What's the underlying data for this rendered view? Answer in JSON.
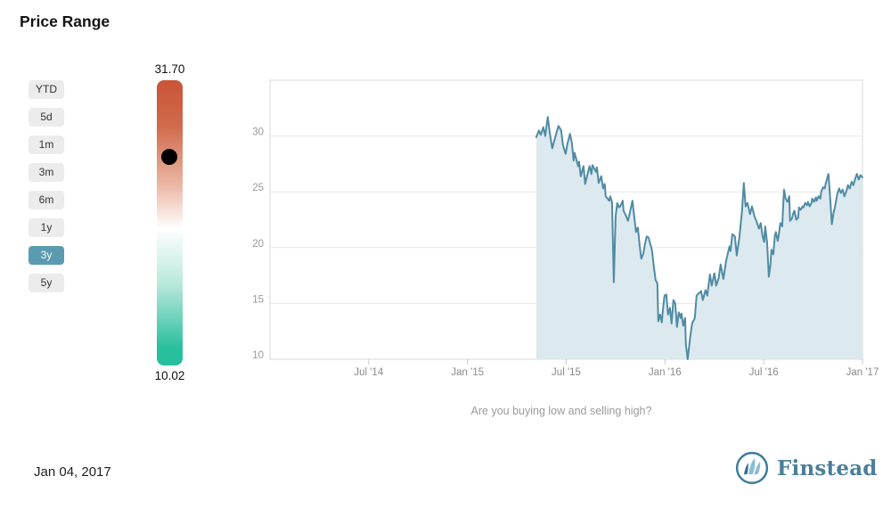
{
  "header": {
    "title": "Price Range"
  },
  "caption": "Are you buying low and selling high?",
  "footer": {
    "date": "Jan 04, 2017"
  },
  "range_selector": {
    "options": [
      "YTD",
      "5d",
      "1m",
      "3m",
      "6m",
      "1y",
      "3y",
      "5y"
    ],
    "selected": "3y",
    "selected_bg": "#5b9bb0",
    "selected_text": "#ffffff",
    "unselected_bg": "#ececec"
  },
  "price_range_bar": {
    "max_label": "31.70",
    "min_label": "10.02",
    "max_value": 31.7,
    "min_value": 10.02,
    "current_value": 25.9,
    "marker_color": "#000000",
    "gradient_stops": [
      "#c95536 0%",
      "#d06a4c 16%",
      "#ecbcab 38%",
      "#ffffff 52%",
      "#b7e7db 72%",
      "#28bf9e 94%"
    ]
  },
  "brand": {
    "name": "Finstead",
    "text_color": "#4b7e99",
    "ring_color": "#3e7d9d",
    "sail_dark": "#2e6f8e",
    "sail_light": "#8abdd3"
  },
  "chart_data": {
    "type": "area",
    "title": "",
    "xlabel": "",
    "ylabel": "",
    "grid": true,
    "legend": false,
    "line_color": "#4f8ba3",
    "fill_color": "#dce9ef",
    "plot_bg": "#ffffff",
    "border_color": "#d9d9d9",
    "grid_color": "#e7e7e7",
    "x_axis": {
      "unit": "months since Jan 2014",
      "range": [
        0,
        36
      ],
      "ticks": [
        {
          "m": 6,
          "label": "Jul '14"
        },
        {
          "m": 12,
          "label": "Jan '15"
        },
        {
          "m": 18,
          "label": "Jul '15"
        },
        {
          "m": 24,
          "label": "Jan '16"
        },
        {
          "m": 30,
          "label": "Jul '16"
        },
        {
          "m": 36,
          "label": "Jan '17"
        }
      ]
    },
    "y_axis": {
      "range": [
        10,
        35
      ],
      "ticks": [
        10,
        15,
        20,
        25,
        30
      ]
    },
    "series": [
      {
        "name": "Price",
        "points": [
          [
            16.18,
            29.9
          ],
          [
            16.34,
            30.5
          ],
          [
            16.45,
            30.1
          ],
          [
            16.61,
            30.8
          ],
          [
            16.72,
            30.0
          ],
          [
            16.88,
            31.7
          ],
          [
            17.0,
            30.3
          ],
          [
            17.15,
            28.9
          ],
          [
            17.37,
            30.1
          ],
          [
            17.53,
            30.9
          ],
          [
            17.69,
            30.5
          ],
          [
            17.8,
            29.2
          ],
          [
            17.96,
            28.4
          ],
          [
            18.07,
            29.3
          ],
          [
            18.18,
            29.9
          ],
          [
            18.23,
            30.2
          ],
          [
            18.34,
            29.4
          ],
          [
            18.45,
            27.8
          ],
          [
            18.51,
            28.5
          ],
          [
            18.72,
            27.3
          ],
          [
            18.78,
            27.7
          ],
          [
            18.88,
            26.4
          ],
          [
            19.05,
            27.3
          ],
          [
            19.15,
            25.7
          ],
          [
            19.26,
            26.4
          ],
          [
            19.42,
            27.3
          ],
          [
            19.53,
            26.6
          ],
          [
            19.59,
            27.4
          ],
          [
            19.8,
            26.8
          ],
          [
            19.86,
            27.2
          ],
          [
            19.97,
            25.8
          ],
          [
            20.13,
            26.4
          ],
          [
            20.24,
            25.3
          ],
          [
            20.34,
            25.7
          ],
          [
            20.4,
            24.6
          ],
          [
            20.62,
            24.2
          ],
          [
            20.67,
            24.6
          ],
          [
            20.78,
            24.1
          ],
          [
            20.89,
            16.9
          ],
          [
            21.0,
            22.8
          ],
          [
            21.1,
            24.0
          ],
          [
            21.21,
            23.6
          ],
          [
            21.32,
            23.8
          ],
          [
            21.43,
            24.2
          ],
          [
            21.48,
            23.3
          ],
          [
            21.59,
            23.0
          ],
          [
            21.75,
            22.4
          ],
          [
            21.86,
            23.1
          ],
          [
            22.02,
            24.2
          ],
          [
            22.13,
            22.8
          ],
          [
            22.24,
            21.4
          ],
          [
            22.35,
            21.8
          ],
          [
            22.46,
            20.2
          ],
          [
            22.56,
            19.0
          ],
          [
            22.67,
            19.4
          ],
          [
            22.78,
            20.3
          ],
          [
            22.89,
            21.0
          ],
          [
            23.0,
            20.9
          ],
          [
            23.11,
            20.3
          ],
          [
            23.21,
            19.8
          ],
          [
            23.32,
            18.3
          ],
          [
            23.43,
            17.1
          ],
          [
            23.54,
            16.8
          ],
          [
            23.59,
            13.4
          ],
          [
            23.7,
            14.0
          ],
          [
            23.81,
            13.3
          ],
          [
            23.86,
            14.2
          ],
          [
            23.97,
            15.7
          ],
          [
            24.08,
            15.8
          ],
          [
            24.19,
            14.0
          ],
          [
            24.3,
            14.6
          ],
          [
            24.4,
            13.2
          ],
          [
            24.51,
            15.3
          ],
          [
            24.62,
            15.0
          ],
          [
            24.73,
            12.9
          ],
          [
            24.84,
            14.2
          ],
          [
            24.95,
            13.7
          ],
          [
            25.0,
            14.1
          ],
          [
            25.11,
            13.0
          ],
          [
            25.22,
            13.7
          ],
          [
            25.27,
            11.3
          ],
          [
            25.38,
            10.0
          ],
          [
            25.54,
            12.1
          ],
          [
            25.65,
            13.2
          ],
          [
            25.81,
            13.7
          ],
          [
            25.92,
            15.7
          ],
          [
            26.19,
            16.1
          ],
          [
            26.3,
            15.3
          ],
          [
            26.46,
            16.2
          ],
          [
            26.57,
            15.7
          ],
          [
            26.73,
            17.6
          ],
          [
            26.84,
            16.6
          ],
          [
            27.0,
            17.7
          ],
          [
            27.11,
            16.6
          ],
          [
            27.27,
            17.3
          ],
          [
            27.38,
            18.5
          ],
          [
            27.55,
            17.2
          ],
          [
            27.71,
            18.8
          ],
          [
            27.92,
            20.1
          ],
          [
            27.98,
            19.7
          ],
          [
            28.09,
            21.2
          ],
          [
            28.25,
            21.0
          ],
          [
            28.36,
            19.3
          ],
          [
            28.52,
            20.9
          ],
          [
            28.68,
            23.3
          ],
          [
            28.79,
            25.8
          ],
          [
            28.9,
            23.7
          ],
          [
            29.01,
            24.0
          ],
          [
            29.17,
            23.0
          ],
          [
            29.28,
            23.7
          ],
          [
            29.44,
            22.8
          ],
          [
            29.55,
            22.4
          ],
          [
            29.71,
            21.7
          ],
          [
            29.82,
            22.2
          ],
          [
            29.93,
            21.0
          ],
          [
            30.03,
            20.5
          ],
          [
            30.09,
            21.9
          ],
          [
            30.2,
            20.5
          ],
          [
            30.31,
            17.4
          ],
          [
            30.41,
            18.5
          ],
          [
            30.47,
            19.8
          ],
          [
            30.58,
            19.4
          ],
          [
            30.68,
            21.1
          ],
          [
            30.74,
            21.4
          ],
          [
            30.85,
            20.6
          ],
          [
            30.9,
            21.0
          ],
          [
            31.01,
            22.2
          ],
          [
            31.12,
            21.9
          ],
          [
            31.23,
            25.2
          ],
          [
            31.33,
            24.4
          ],
          [
            31.44,
            24.1
          ],
          [
            31.55,
            24.6
          ],
          [
            31.6,
            22.4
          ],
          [
            31.71,
            22.6
          ],
          [
            31.82,
            23.2
          ],
          [
            31.87,
            23.3
          ],
          [
            31.98,
            22.5
          ],
          [
            32.09,
            22.7
          ],
          [
            32.14,
            23.6
          ],
          [
            32.25,
            23.4
          ],
          [
            32.36,
            23.7
          ],
          [
            32.41,
            23.6
          ],
          [
            32.52,
            24.0
          ],
          [
            32.63,
            23.8
          ],
          [
            32.68,
            24.1
          ],
          [
            32.79,
            23.7
          ],
          [
            32.9,
            24.0
          ],
          [
            32.95,
            24.4
          ],
          [
            33.06,
            24.1
          ],
          [
            33.17,
            24.5
          ],
          [
            33.22,
            24.2
          ],
          [
            33.33,
            24.6
          ],
          [
            33.44,
            24.4
          ],
          [
            33.49,
            25.0
          ],
          [
            33.6,
            25.4
          ],
          [
            33.71,
            25.3
          ],
          [
            33.76,
            25.7
          ],
          [
            33.93,
            26.6
          ],
          [
            34.03,
            24.6
          ],
          [
            34.14,
            22.1
          ],
          [
            34.25,
            23.2
          ],
          [
            34.31,
            23.5
          ],
          [
            34.47,
            24.8
          ],
          [
            34.58,
            25.3
          ],
          [
            34.69,
            24.9
          ],
          [
            34.8,
            25.2
          ],
          [
            34.9,
            24.6
          ],
          [
            35.01,
            25.0
          ],
          [
            35.12,
            25.6
          ],
          [
            35.23,
            25.3
          ],
          [
            35.34,
            25.9
          ],
          [
            35.45,
            25.6
          ],
          [
            35.56,
            26.2
          ],
          [
            35.66,
            26.6
          ],
          [
            35.77,
            26.1
          ],
          [
            35.88,
            26.5
          ],
          [
            35.99,
            26.3
          ]
        ]
      }
    ]
  }
}
